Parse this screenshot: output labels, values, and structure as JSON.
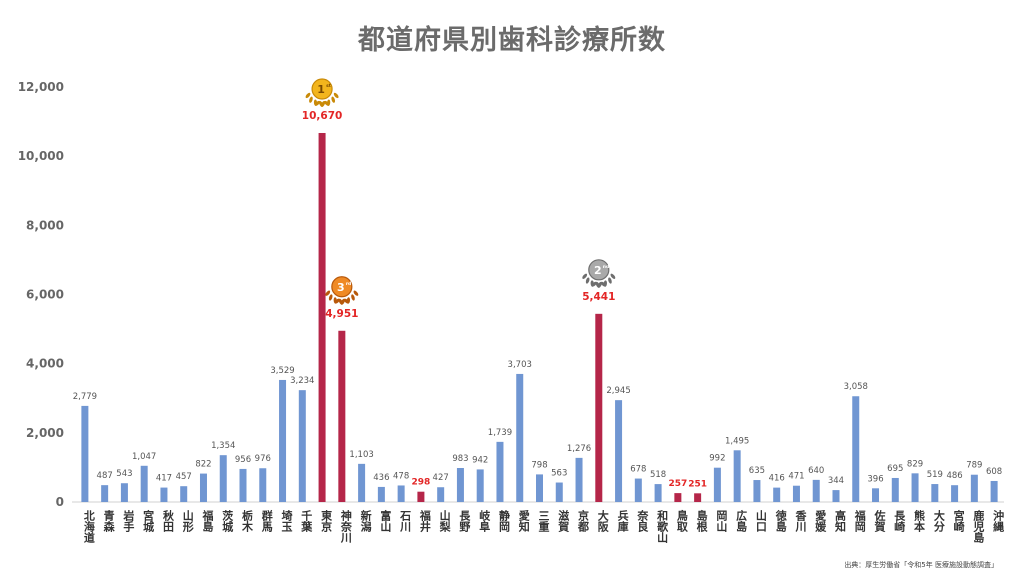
{
  "chart_data": {
    "type": "bar",
    "title": "都道府県別歯科診療所数",
    "source": "出典：厚生労働省「令和5年 医療施設動態調査」",
    "ylim": [
      0,
      12000
    ],
    "yticks": [
      "0",
      "2,000",
      "4,000",
      "6,000",
      "8,000",
      "10,000",
      "12,000"
    ],
    "ytick_values": [
      0,
      2000,
      4000,
      6000,
      8000,
      10000,
      12000
    ],
    "grid": false,
    "colors": {
      "normal": "#7096d2",
      "highlight": "#b52649",
      "low_label": "#e32626"
    },
    "categories": [
      "北海道",
      "青森",
      "岩手",
      "宮城",
      "秋田",
      "山形",
      "福島",
      "茨城",
      "栃木",
      "群馬",
      "埼玉",
      "千葉",
      "東京",
      "神奈川",
      "新潟",
      "富山",
      "石川",
      "福井",
      "山梨",
      "長野",
      "岐阜",
      "静岡",
      "愛知",
      "三重",
      "滋賀",
      "京都",
      "大阪",
      "兵庫",
      "奈良",
      "和歌山",
      "鳥取",
      "島根",
      "岡山",
      "広島",
      "山口",
      "徳島",
      "香川",
      "愛媛",
      "高知",
      "福岡",
      "佐賀",
      "長崎",
      "熊本",
      "大分",
      "宮崎",
      "鹿児島",
      "沖縄"
    ],
    "values": [
      2779,
      487,
      543,
      1047,
      417,
      457,
      822,
      1354,
      956,
      976,
      3529,
      3234,
      10670,
      4951,
      1103,
      436,
      478,
      298,
      427,
      983,
      942,
      1739,
      3703,
      798,
      563,
      1276,
      5441,
      2945,
      678,
      518,
      257,
      251,
      992,
      1495,
      635,
      416,
      471,
      640,
      344,
      3058,
      396,
      695,
      829,
      519,
      486,
      789,
      608
    ],
    "value_labels": [
      "2,779",
      "487",
      "543",
      "1,047",
      "417",
      "457",
      "822",
      "1,354",
      "956",
      "976",
      "3,529",
      "3,234",
      "10,670",
      "4,951",
      "1,103",
      "436",
      "478",
      "298",
      "427",
      "983",
      "942",
      "1,739",
      "3,703",
      "798",
      "563",
      "1,276",
      "5,441",
      "2,945",
      "678",
      "518",
      "257",
      "251",
      "992",
      "1,495",
      "635",
      "416",
      "471",
      "640",
      "344",
      "3,058",
      "396",
      "695",
      "829",
      "519",
      "486",
      "789",
      "608"
    ],
    "highlight": [
      "東京",
      "神奈川",
      "大阪",
      "福井",
      "鳥取",
      "島根"
    ],
    "top_ranks": [
      {
        "category": "東京",
        "rank": "1",
        "suffix": "st",
        "medal": "gold"
      },
      {
        "category": "大阪",
        "rank": "2",
        "suffix": "nd",
        "medal": "silver"
      },
      {
        "category": "神奈川",
        "rank": "3",
        "suffix": "rd",
        "medal": "bronze"
      }
    ],
    "low_labels": [
      "福井",
      "鳥取",
      "島根"
    ]
  }
}
